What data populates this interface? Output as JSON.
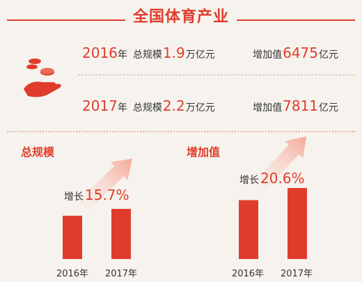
{
  "title": "全国体育产业",
  "stats": [
    {
      "year": "2016",
      "year_suffix": "年",
      "total_label": "总规模",
      "total_value": "1.9",
      "total_unit": "万亿元",
      "added_label": "增加值",
      "added_value": "6475",
      "added_unit": "亿元"
    },
    {
      "year": "2017",
      "year_suffix": "年",
      "total_label": "总规模",
      "total_value": "2.2",
      "total_unit": "万亿元",
      "added_label": "增加值",
      "added_value": "7811",
      "added_unit": "亿元"
    }
  ],
  "icon": "hand-coins-icon",
  "colors": {
    "accent": "#e03c2c",
    "arrow_light": "#fbe0d8"
  },
  "chart_data": [
    {
      "type": "bar",
      "title": "总规模",
      "categories": [
        "2016年",
        "2017年"
      ],
      "values": [
        1.9,
        2.2
      ],
      "annotation": {
        "label": "增长",
        "value": "15.7%"
      }
    },
    {
      "type": "bar",
      "title": "增加值",
      "categories": [
        "2016年",
        "2017年"
      ],
      "values": [
        6475,
        7811
      ],
      "annotation": {
        "label": "增长",
        "value": "20.6%"
      }
    }
  ]
}
